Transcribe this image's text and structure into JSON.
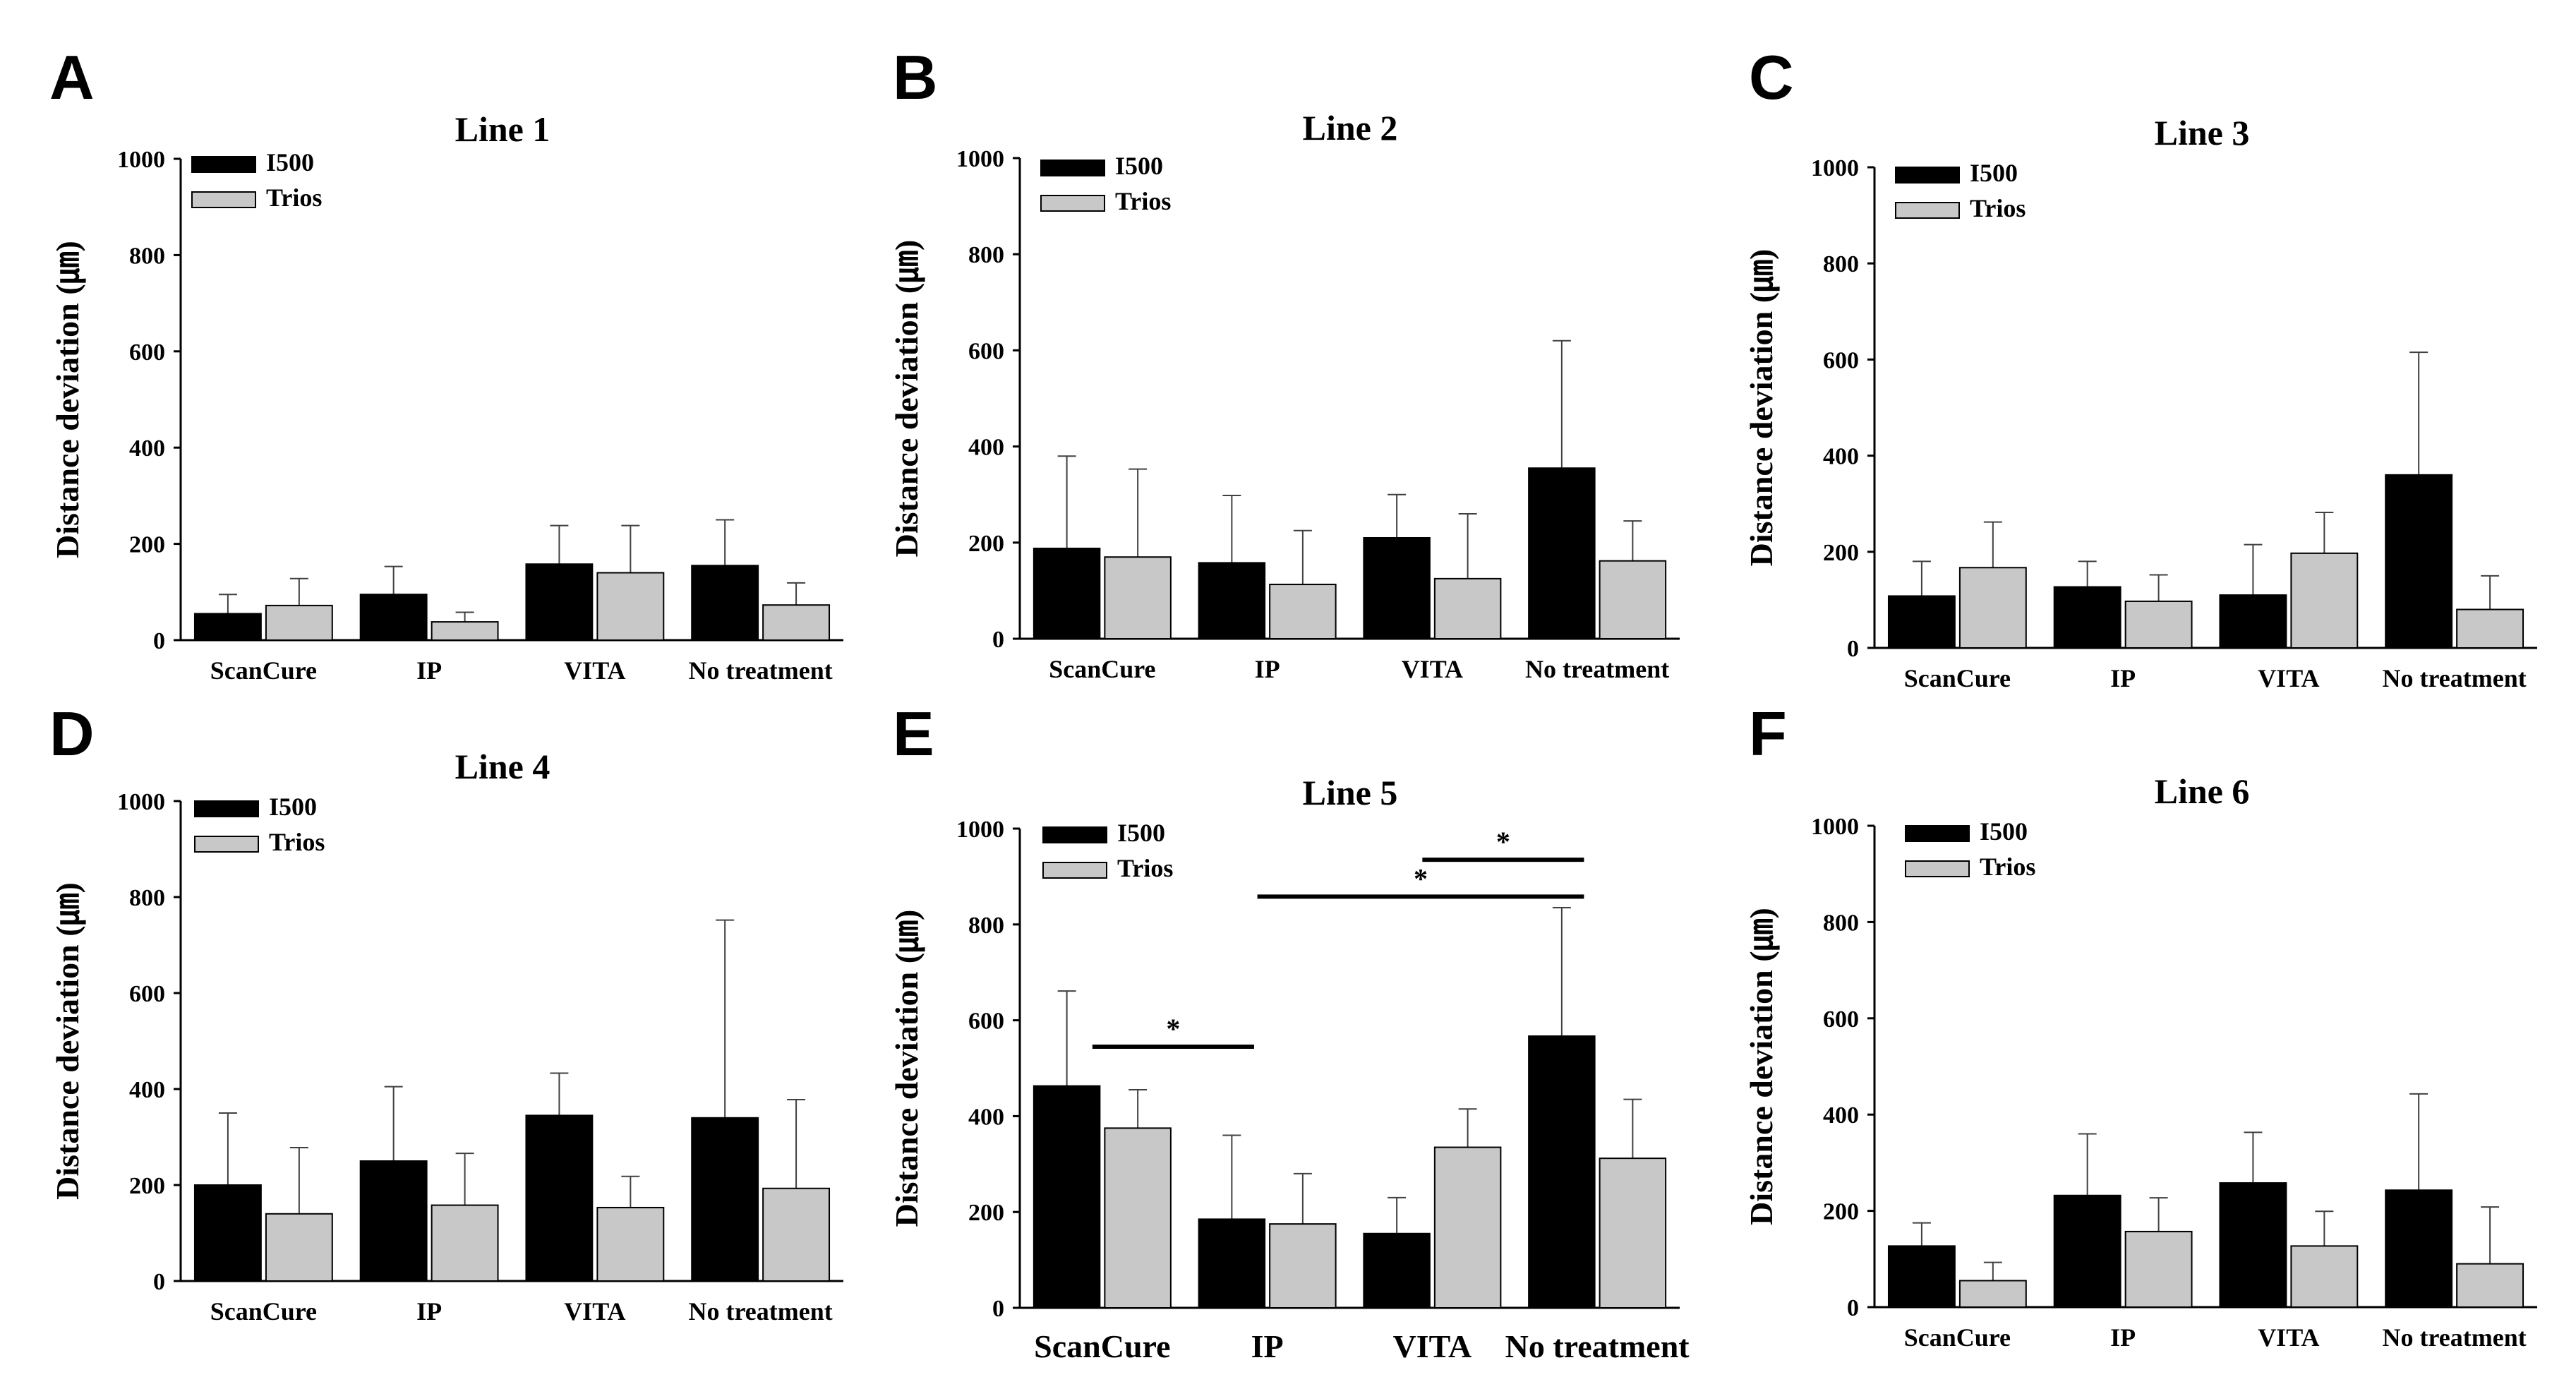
{
  "colors": {
    "I500": "#000000",
    "Trios": "#c8c8c8",
    "axis": "#000000",
    "errorbar": "#404040"
  },
  "chart_data": [
    {
      "panel": "A",
      "type": "bar",
      "title": "Line 1",
      "ylabel": "Distance deviation (㎛)",
      "ylim": [
        0,
        1000
      ],
      "yticks": [
        0,
        200,
        400,
        600,
        800,
        1000
      ],
      "categories": [
        "ScanCure",
        "IP",
        "VITA",
        "No treatment"
      ],
      "series": [
        {
          "name": "I500",
          "values": [
            55,
            95,
            158,
            155
          ],
          "errors": [
            40,
            58,
            80,
            95
          ]
        },
        {
          "name": "Trios",
          "values": [
            72,
            38,
            140,
            73
          ],
          "errors": [
            56,
            20,
            98,
            46
          ]
        }
      ],
      "legend": "top-left",
      "significance": []
    },
    {
      "panel": "B",
      "type": "bar",
      "title": "Line 2",
      "ylabel": "Distance deviation (㎛)",
      "ylim": [
        0,
        1000
      ],
      "yticks": [
        0,
        200,
        400,
        600,
        800,
        1000
      ],
      "categories": [
        "ScanCure",
        "IP",
        "VITA",
        "No treatment"
      ],
      "series": [
        {
          "name": "I500",
          "values": [
            188,
            158,
            210,
            355
          ],
          "errors": [
            192,
            140,
            90,
            265
          ]
        },
        {
          "name": "Trios",
          "values": [
            170,
            113,
            125,
            162
          ],
          "errors": [
            183,
            112,
            135,
            83
          ]
        }
      ],
      "legend": "top-left",
      "significance": []
    },
    {
      "panel": "C",
      "type": "bar",
      "title": "Line 3",
      "ylabel": "Distance deviation (㎛)",
      "ylim": [
        0,
        1000
      ],
      "yticks": [
        0,
        200,
        400,
        600,
        800,
        1000
      ],
      "categories": [
        "ScanCure",
        "IP",
        "VITA",
        "No treatment"
      ],
      "series": [
        {
          "name": "I500",
          "values": [
            108,
            127,
            110,
            360
          ],
          "errors": [
            72,
            53,
            105,
            255
          ]
        },
        {
          "name": "Trios",
          "values": [
            167,
            97,
            197,
            80
          ],
          "errors": [
            95,
            55,
            85,
            70
          ]
        }
      ],
      "legend": "top-left",
      "significance": []
    },
    {
      "panel": "D",
      "type": "bar",
      "title": "Line 4",
      "ylabel": "Distance deviation (㎛)",
      "ylim": [
        0,
        1000
      ],
      "yticks": [
        0,
        200,
        400,
        600,
        800,
        1000
      ],
      "categories": [
        "ScanCure",
        "IP",
        "VITA",
        "No treatment"
      ],
      "series": [
        {
          "name": "I500",
          "values": [
            200,
            250,
            345,
            340
          ],
          "errors": [
            150,
            155,
            88,
            412
          ]
        },
        {
          "name": "Trios",
          "values": [
            140,
            158,
            153,
            193
          ],
          "errors": [
            138,
            108,
            65,
            185
          ]
        }
      ],
      "legend": "top-left",
      "significance": []
    },
    {
      "panel": "E",
      "type": "bar",
      "title": "Line 5",
      "ylabel": "Distance deviation (㎛)",
      "ylim": [
        0,
        1000
      ],
      "yticks": [
        0,
        200,
        400,
        600,
        800,
        1000
      ],
      "categories": [
        "ScanCure",
        "IP",
        "VITA",
        "No treatment"
      ],
      "series": [
        {
          "name": "I500",
          "values": [
            463,
            185,
            155,
            567
          ],
          "errors": [
            198,
            175,
            75,
            268
          ]
        },
        {
          "name": "Trios",
          "values": [
            375,
            175,
            335,
            312
          ],
          "errors": [
            80,
            105,
            80,
            123
          ]
        }
      ],
      "legend": "top-left",
      "significance": [
        {
          "from": 0,
          "to": 1,
          "level": 545,
          "label": "*"
        },
        {
          "from": 1,
          "to": 3,
          "level": 858,
          "label": "*"
        },
        {
          "from": 2,
          "to": 3,
          "level": 935,
          "label": "*"
        }
      ]
    },
    {
      "panel": "F",
      "type": "bar",
      "title": "Line 6",
      "ylabel": "Distance deviation (㎛)",
      "ylim": [
        0,
        1000
      ],
      "yticks": [
        0,
        200,
        400,
        600,
        800,
        1000
      ],
      "categories": [
        "ScanCure",
        "IP",
        "VITA",
        "No treatment"
      ],
      "series": [
        {
          "name": "I500",
          "values": [
            127,
            232,
            258,
            243
          ],
          "errors": [
            48,
            128,
            105,
            200
          ]
        },
        {
          "name": "Trios",
          "values": [
            55,
            157,
            127,
            90
          ],
          "errors": [
            38,
            70,
            72,
            118
          ]
        }
      ],
      "legend": "top-left",
      "significance": []
    }
  ]
}
